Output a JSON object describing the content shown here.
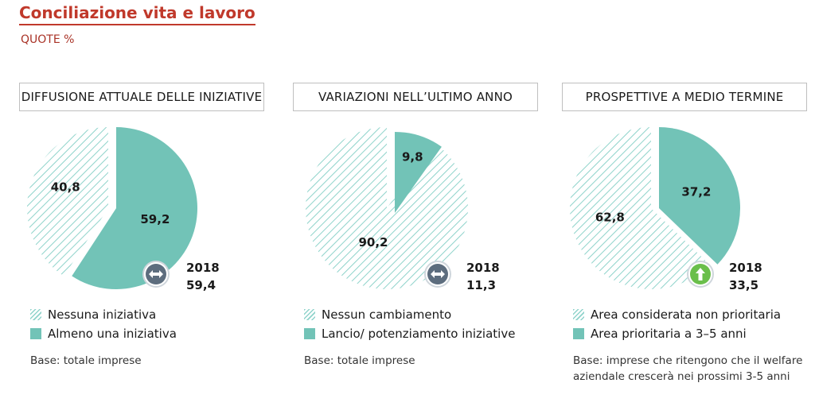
{
  "title": "Conciliazione vita e lavoro",
  "subtitle": "QUOTE %",
  "colors": {
    "accent": "#c0392b",
    "solid": "#72c3b7",
    "hatch": "#8fd3cb",
    "marker": "#5d6d7e",
    "arrow_up": "#6abf4b"
  },
  "chart_data": [
    {
      "type": "pie",
      "title": "DIFFUSIONE ATTUALE DELLE INIZIATIVE",
      "slices": [
        {
          "label": "Nessuna iniziativa",
          "value": 40.8,
          "display": "40,8",
          "fill": "hatch"
        },
        {
          "label": "Almeno una iniziativa",
          "value": 59.2,
          "display": "59,2",
          "fill": "solid"
        }
      ],
      "comparison": {
        "year": "2018",
        "value": "59,4",
        "trend": "stable",
        "icon": "left-right-arrow-icon"
      },
      "base_note": "Base: totale imprese"
    },
    {
      "type": "pie",
      "title": "VARIAZIONI NELL’ULTIMO ANNO",
      "slices": [
        {
          "label": "Nessun cambiamento",
          "value": 90.2,
          "display": "90,2",
          "fill": "hatch"
        },
        {
          "label": "Lancio/ potenziamento iniziative",
          "value": 9.8,
          "display": "9,8",
          "fill": "solid"
        }
      ],
      "comparison": {
        "year": "2018",
        "value": "11,3",
        "trend": "stable",
        "icon": "left-right-arrow-icon"
      },
      "base_note": "Base: totale imprese"
    },
    {
      "type": "pie",
      "title": "PROSPETTIVE A MEDIO TERMINE",
      "slices": [
        {
          "label": "Area considerata non prioritaria",
          "value": 62.8,
          "display": "62,8",
          "fill": "hatch"
        },
        {
          "label": "Area prioritaria a 3–5 anni",
          "value": 37.2,
          "display": "37,2",
          "fill": "solid"
        }
      ],
      "comparison": {
        "year": "2018",
        "value": "33,5",
        "trend": "up",
        "icon": "up-arrow-icon"
      },
      "base_note": "Base: imprese che ritengono che il welfare aziendale crescerà nei prossimi 3-5 anni"
    }
  ]
}
